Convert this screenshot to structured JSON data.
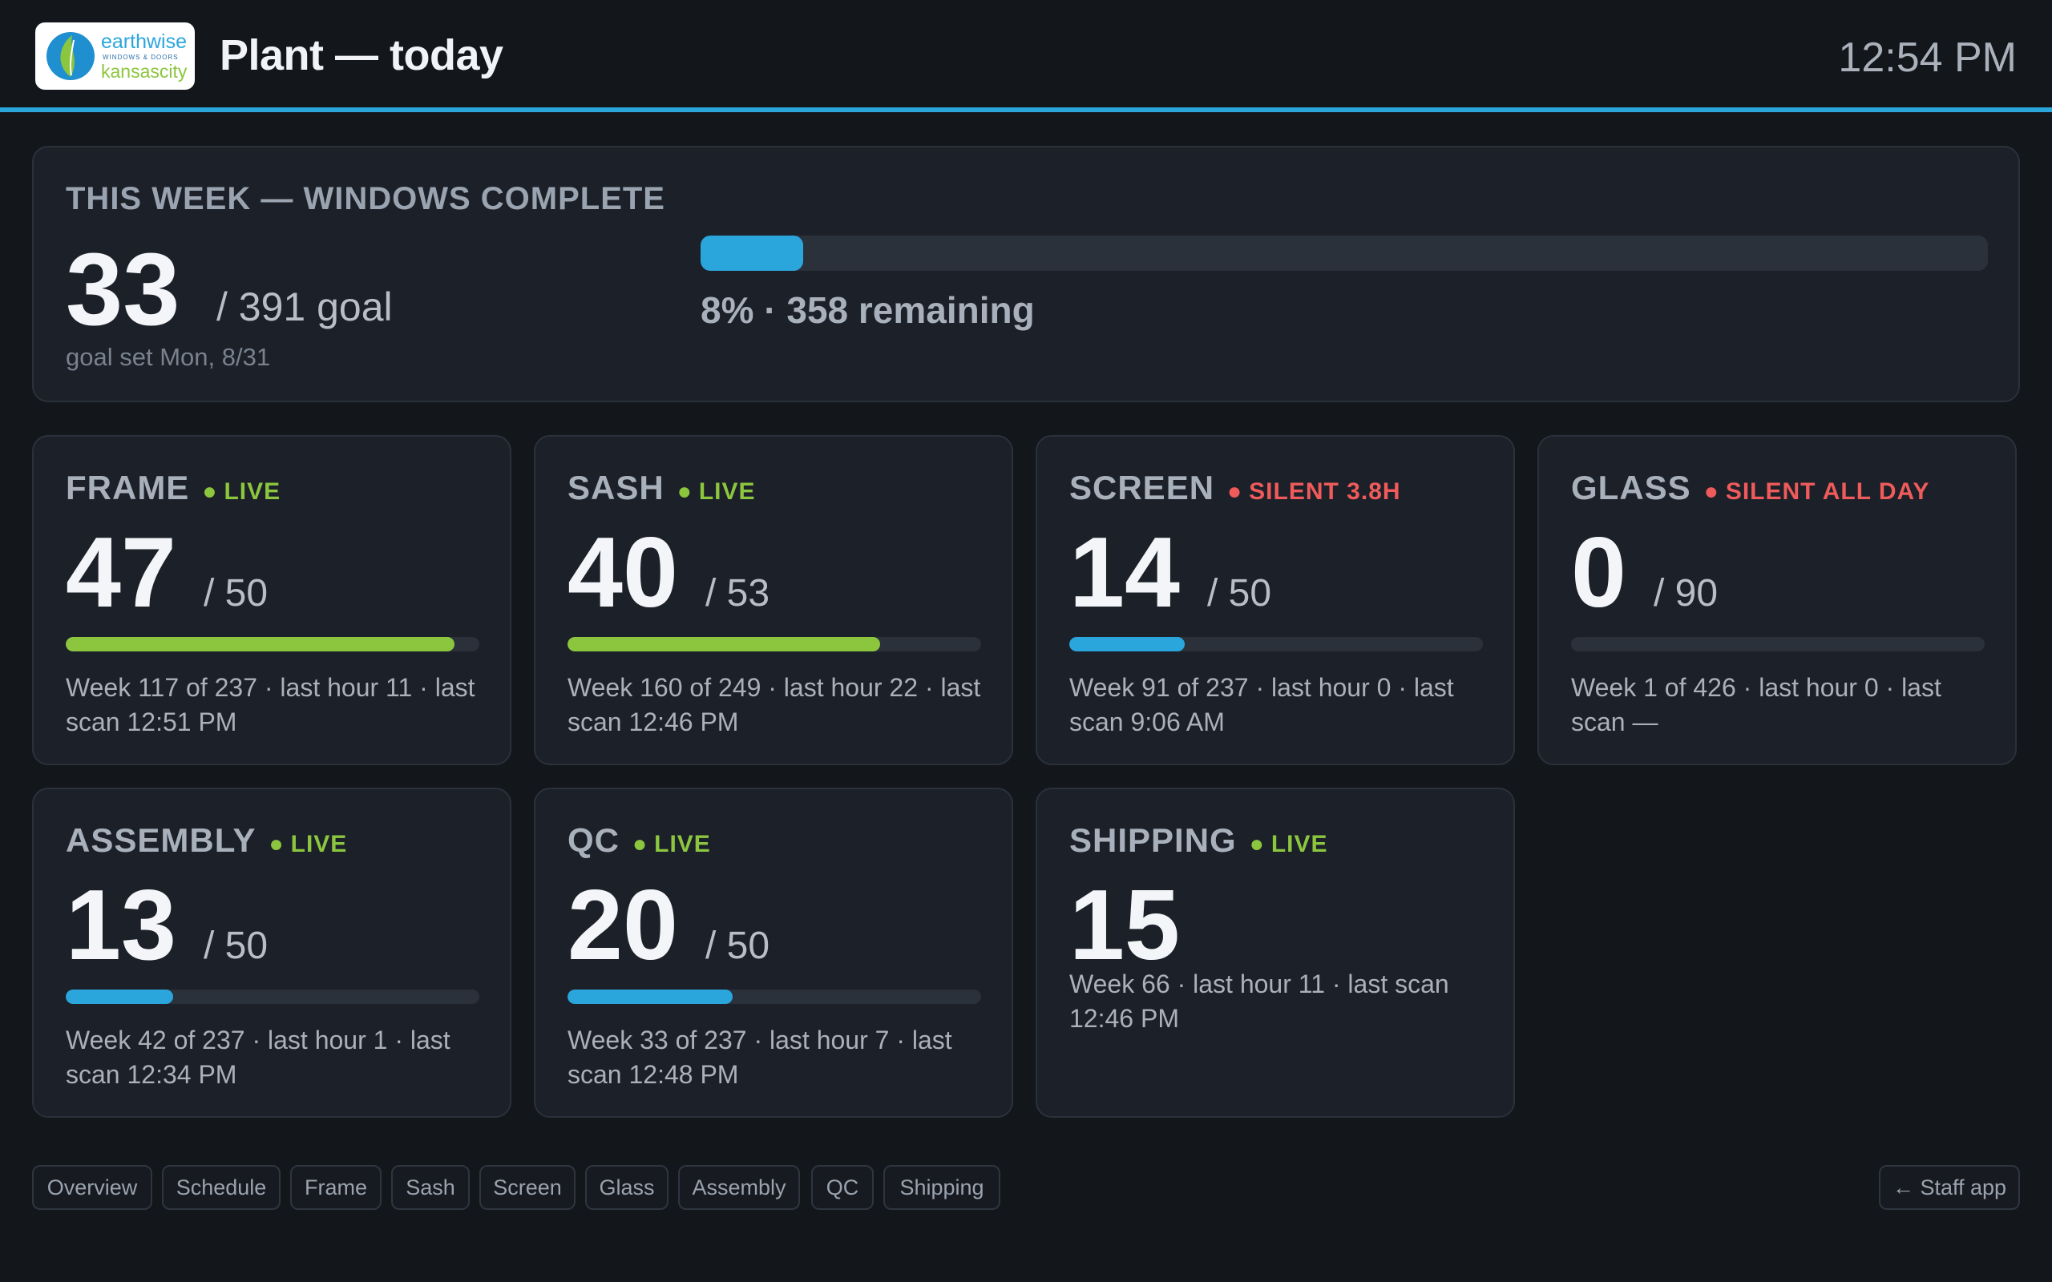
{
  "header": {
    "logo": {
      "line1": "earthwise",
      "line2": "WINDOWS & DOORS",
      "line3": "kansascity"
    },
    "title": "Plant — today",
    "clock": "12:54 PM",
    "accent": "#2aa6dd"
  },
  "week": {
    "heading": "THIS WEEK — WINDOWS COMPLETE",
    "count": "33",
    "goal_text": "/ 391 goal",
    "goal_set": "goal set Mon, 8/31",
    "progress": 0.08,
    "remaining_text": "8% · 358 remaining"
  },
  "stations": [
    {
      "name": "FRAME",
      "status": "LIVE",
      "status_color": "#8cc63f",
      "count": "47",
      "target": "/ 50",
      "progress": 0.94,
      "bar_color": "#8cc63f",
      "detail": "Week 117 of 237 · last hour 11 · last scan 12:51 PM"
    },
    {
      "name": "SASH",
      "status": "LIVE",
      "status_color": "#8cc63f",
      "count": "40",
      "target": "/ 53",
      "progress": 0.755,
      "bar_color": "#8cc63f",
      "detail": "Week 160 of 249 · last hour 22 · last scan 12:46 PM"
    },
    {
      "name": "SCREEN",
      "status": "SILENT 3.8H",
      "status_color": "#ef5b5b",
      "count": "14",
      "target": "/ 50",
      "progress": 0.28,
      "bar_color": "#2aa6dd",
      "detail": "Week 91 of 237 · last hour 0 · last scan 9:06 AM"
    },
    {
      "name": "GLASS",
      "status": "SILENT ALL DAY",
      "status_color": "#ef5b5b",
      "count": "0",
      "target": "/ 90",
      "progress": 0,
      "bar_color": "#2aa6dd",
      "detail": "Week 1 of 426 · last hour 0 · last scan —"
    },
    {
      "name": "ASSEMBLY",
      "status": "LIVE",
      "status_color": "#8cc63f",
      "count": "13",
      "target": "/ 50",
      "progress": 0.26,
      "bar_color": "#2aa6dd",
      "detail": "Week 42 of 237 · last hour 1 · last scan 12:34 PM"
    },
    {
      "name": "QC",
      "status": "LIVE",
      "status_color": "#8cc63f",
      "count": "20",
      "target": "/ 50",
      "progress": 0.4,
      "bar_color": "#2aa6dd",
      "detail": "Week 33 of 237 · last hour 7 · last scan 12:48 PM"
    },
    {
      "name": "SHIPPING",
      "status": "LIVE",
      "status_color": "#8cc63f",
      "count": "15",
      "target": "",
      "progress": null,
      "bar_color": "#2aa6dd",
      "detail": "Week 66 · last hour 11 · last scan 12:46 PM"
    }
  ],
  "nav": {
    "items": [
      "Overview",
      "Schedule",
      "Frame",
      "Sash",
      "Screen",
      "Glass",
      "Assembly",
      "QC",
      "Shipping"
    ],
    "staff_app": "← Staff app"
  }
}
